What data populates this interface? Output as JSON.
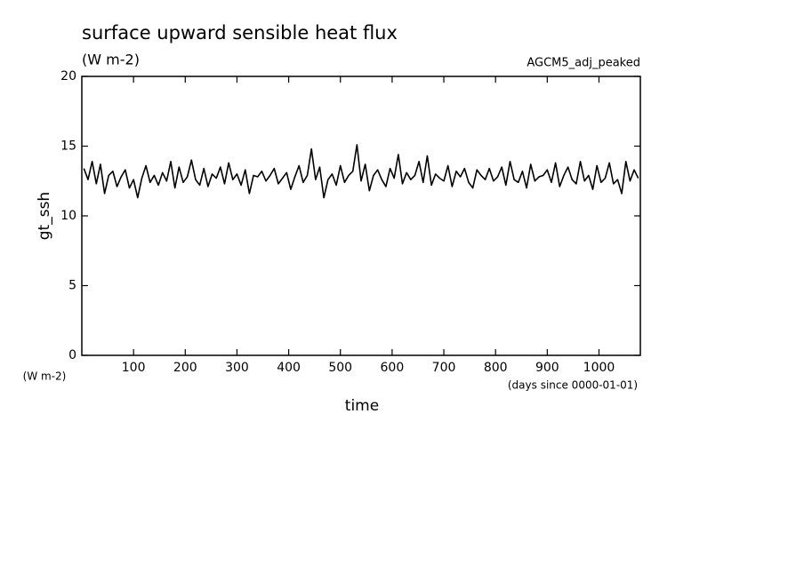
{
  "chart_data": {
    "type": "line",
    "title": "surface upward sensible heat flux",
    "subtitle": "(W m-2)",
    "annotation": "AGCM5_adj_peaked",
    "y_label": "gt_ssh",
    "y_unit": "(W m-2)",
    "x_label": "time",
    "x_unit": "(days since 0000-01-01)",
    "xlim": [
      0,
      1080
    ],
    "ylim": [
      0,
      20
    ],
    "xticks": [
      100,
      200,
      300,
      400,
      500,
      600,
      700,
      800,
      900,
      1000
    ],
    "yticks": [
      0,
      5,
      10,
      15,
      20
    ],
    "x": [
      4,
      12,
      20,
      28,
      36,
      44,
      52,
      60,
      68,
      76,
      84,
      92,
      100,
      108,
      116,
      124,
      132,
      140,
      148,
      156,
      164,
      172,
      180,
      188,
      196,
      204,
      212,
      220,
      228,
      236,
      244,
      252,
      260,
      268,
      276,
      284,
      292,
      300,
      308,
      316,
      324,
      332,
      340,
      348,
      356,
      364,
      372,
      380,
      388,
      396,
      404,
      412,
      420,
      428,
      436,
      444,
      452,
      460,
      468,
      476,
      484,
      492,
      500,
      508,
      516,
      524,
      532,
      540,
      548,
      556,
      564,
      572,
      580,
      588,
      596,
      604,
      612,
      620,
      628,
      636,
      644,
      652,
      660,
      668,
      676,
      684,
      692,
      700,
      708,
      716,
      724,
      732,
      740,
      748,
      756,
      764,
      772,
      780,
      788,
      796,
      804,
      812,
      820,
      828,
      836,
      844,
      852,
      860,
      868,
      876,
      884,
      892,
      900,
      908,
      916,
      924,
      932,
      940,
      948,
      956,
      964,
      972,
      980,
      988,
      996,
      1004,
      1012,
      1020,
      1028,
      1036,
      1044,
      1052,
      1060,
      1068,
      1076
    ],
    "series": [
      {
        "color": "#000000",
        "values": [
          13.4,
          12.6,
          13.9,
          12.3,
          13.7,
          11.6,
          12.9,
          13.2,
          12.1,
          12.8,
          13.3,
          12.0,
          12.6,
          11.3,
          12.7,
          13.6,
          12.4,
          12.9,
          12.2,
          13.1,
          12.5,
          13.9,
          12.0,
          13.5,
          12.4,
          12.8,
          14.0,
          12.6,
          12.2,
          13.4,
          12.1,
          13.0,
          12.7,
          13.5,
          12.3,
          13.8,
          12.6,
          13.0,
          12.2,
          13.3,
          11.6,
          12.9,
          12.8,
          13.2,
          12.5,
          12.9,
          13.4,
          12.3,
          12.7,
          13.1,
          11.9,
          12.8,
          13.6,
          12.4,
          12.9,
          14.8,
          12.6,
          13.5,
          11.3,
          12.6,
          13.0,
          12.2,
          13.6,
          12.4,
          12.9,
          13.2,
          15.1,
          12.5,
          13.7,
          11.8,
          12.9,
          13.3,
          12.6,
          12.1,
          13.4,
          12.7,
          14.4,
          12.3,
          13.1,
          12.6,
          12.9,
          13.9,
          12.4,
          14.3,
          12.2,
          13.0,
          12.7,
          12.5,
          13.6,
          12.1,
          13.2,
          12.8,
          13.4,
          12.4,
          12.0,
          13.3,
          12.9,
          12.6,
          13.4,
          12.5,
          12.8,
          13.5,
          12.2,
          13.9,
          12.6,
          12.4,
          13.2,
          12.0,
          13.7,
          12.5,
          12.8,
          12.9,
          13.3,
          12.4,
          13.8,
          12.1,
          12.9,
          13.5,
          12.6,
          12.3,
          13.9,
          12.5,
          12.9,
          11.9,
          13.6,
          12.4,
          12.7,
          13.8,
          12.3,
          12.6,
          11.6,
          13.9,
          12.5,
          13.3,
          12.7
        ]
      }
    ]
  }
}
